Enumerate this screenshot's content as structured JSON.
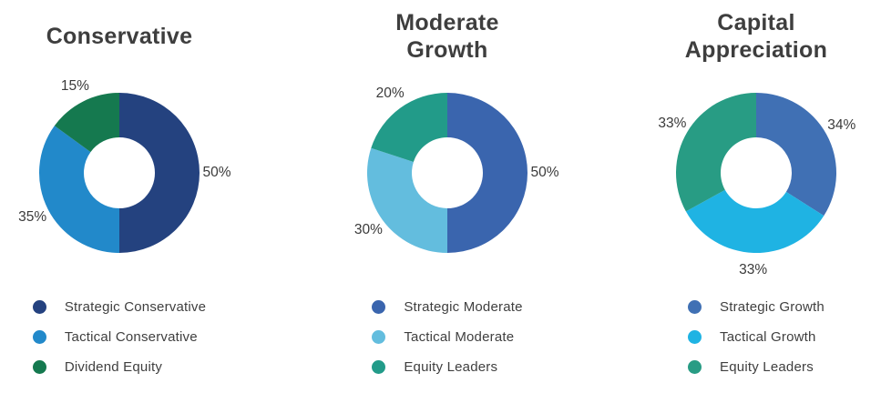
{
  "chart_data": [
    {
      "type": "donut",
      "title": "Conservative",
      "title_display": "Conservative",
      "labels": [
        "Strategic Conservative",
        "Tactical Conservative",
        "Dividend Equity"
      ],
      "values": [
        50,
        35,
        15
      ],
      "value_labels": [
        "50%",
        "35%",
        "15%"
      ],
      "colors": [
        "#24427F",
        "#2289CA",
        "#15794F"
      ],
      "start_angle_deg": 0,
      "direction": "clockwise",
      "legend_position": "bottom"
    },
    {
      "type": "donut",
      "title": "Moderate Growth",
      "title_display": "Moderate\nGrowth",
      "labels": [
        "Strategic Moderate",
        "Tactical Moderate",
        "Equity Leaders"
      ],
      "values": [
        50,
        30,
        20
      ],
      "value_labels": [
        "50%",
        "30%",
        "20%"
      ],
      "colors": [
        "#3A65AE",
        "#63BDDE",
        "#229B89"
      ],
      "start_angle_deg": 0,
      "direction": "clockwise",
      "legend_position": "bottom"
    },
    {
      "type": "donut",
      "title": "Capital Appreciation",
      "title_display": "Capital\nAppreciation",
      "labels": [
        "Strategic Growth",
        "Tactical Growth",
        "Equity Leaders"
      ],
      "values": [
        34,
        33,
        33
      ],
      "value_labels": [
        "34%",
        "33%",
        "33%"
      ],
      "colors": [
        "#4070B4",
        "#1FB3E3",
        "#289C84"
      ],
      "start_angle_deg": 0,
      "direction": "clockwise",
      "legend_position": "bottom"
    }
  ],
  "styles": {
    "title_color": "#3E3E3E",
    "percent_label_color": "#3A3A3A",
    "legend_text_color": "#3F3F3F",
    "background": "#FFFFFF"
  }
}
